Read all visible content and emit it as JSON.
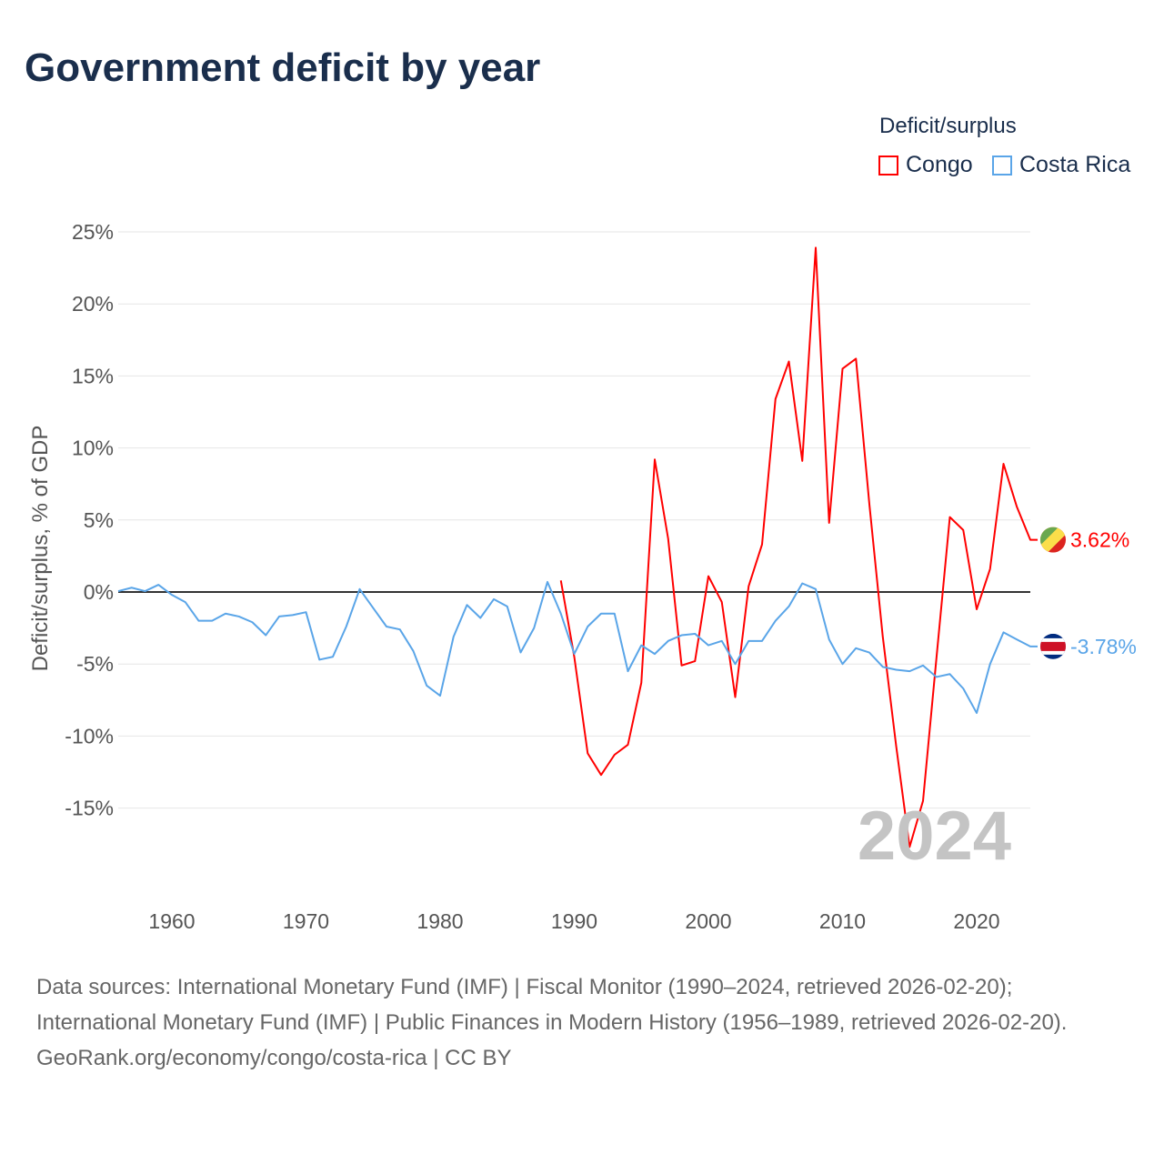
{
  "title": "Government deficit by year",
  "legend": {
    "title": "Deficit/surplus",
    "items": [
      {
        "label": "Congo",
        "color": "#ff0000"
      },
      {
        "label": "Costa Rica",
        "color": "#5aa5e8"
      }
    ]
  },
  "chart_data": {
    "type": "line",
    "title": "Government deficit by year",
    "ylabel": "Deficit/surplus, % of GDP",
    "xlabel": "",
    "ylim": [
      -20,
      25
    ],
    "xlim": [
      1956,
      2024
    ],
    "yticks": [
      25,
      20,
      15,
      10,
      5,
      0,
      -5,
      -10,
      -15
    ],
    "ytick_labels": [
      "25%",
      "20%",
      "15%",
      "10%",
      "5%",
      "0%",
      "-5%",
      "-10%",
      "-15%"
    ],
    "xticks": [
      1960,
      1970,
      1980,
      1990,
      2000,
      2010,
      2020
    ],
    "xtick_labels": [
      "1960",
      "1970",
      "1980",
      "1990",
      "2000",
      "2010",
      "2020"
    ],
    "grid": true,
    "year_watermark": "2024",
    "series": [
      {
        "name": "Congo",
        "color": "#ff0000",
        "start_year": 1989,
        "end_label": "3.62%",
        "values": [
          0.8,
          -4.5,
          -11.2,
          -12.7,
          -11.3,
          -10.6,
          -6.3,
          9.2,
          3.7,
          -5.1,
          -4.8,
          1.1,
          -0.7,
          -7.3,
          0.4,
          3.3,
          13.4,
          16.0,
          9.1,
          23.9,
          4.8,
          15.5,
          16.2,
          6.1,
          -3.1,
          -10.7,
          -17.7,
          -14.5,
          -4.6,
          5.2,
          4.3,
          -1.2,
          1.6,
          8.9,
          5.9,
          3.62
        ]
      },
      {
        "name": "Costa Rica",
        "color": "#5aa5e8",
        "start_year": 1956,
        "end_label": "-3.78%",
        "values": [
          0.06,
          0.3,
          0.06,
          0.5,
          -0.2,
          -0.7,
          -2.0,
          -2.0,
          -1.5,
          -1.7,
          -2.1,
          -3.0,
          -1.7,
          -1.6,
          -1.4,
          -4.7,
          -4.5,
          -2.4,
          0.2,
          -1.1,
          -2.4,
          -2.6,
          -4.1,
          -6.5,
          -7.2,
          -3.1,
          -0.9,
          -1.8,
          -0.5,
          -1.0,
          -4.2,
          -2.5,
          0.7,
          -1.5,
          -4.3,
          -2.4,
          -1.5,
          -1.5,
          -5.5,
          -3.7,
          -4.3,
          -3.4,
          -3.0,
          -2.9,
          -3.7,
          -3.4,
          -5.0,
          -3.4,
          -3.4,
          -2.0,
          -1.0,
          0.6,
          0.2,
          -3.3,
          -5.0,
          -3.9,
          -4.2,
          -5.2,
          -5.4,
          -5.5,
          -5.1,
          -5.9,
          -5.7,
          -6.7,
          -8.4,
          -5.0,
          -2.8,
          -3.3,
          -3.78
        ]
      }
    ]
  },
  "footer": {
    "sources": "Data sources: International Monetary Fund (IMF) | Fiscal Monitor (1990–2024, retrieved 2026-02-20); International Monetary Fund (IMF) | Public Finances in Modern History (1956–1989, retrieved 2026-02-20).",
    "credit": "GeoRank.org/economy/congo/costa-rica | CC BY"
  }
}
